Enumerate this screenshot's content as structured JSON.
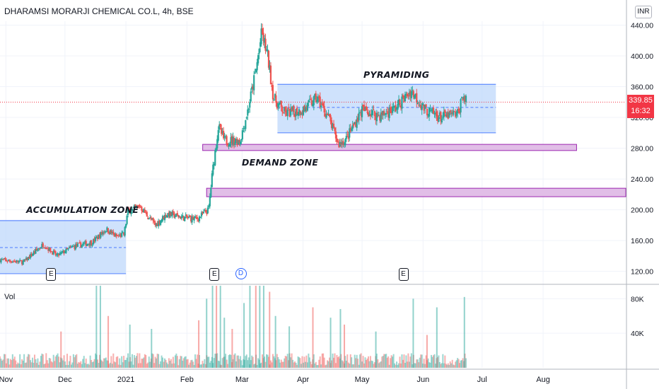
{
  "header": {
    "title": "DHARAMSI MORARJI CHEMICAL CO.L, 4h, BSE",
    "currency": "INR"
  },
  "annotations": {
    "accumulation": "ACCUMULATION ZONE",
    "demand": "DEMAND ZONE",
    "pyramiding": "PYRAMIDING"
  },
  "price_tag": {
    "price": "339.85",
    "countdown": "16:32"
  },
  "volume_label": "Vol",
  "events": [
    {
      "symbol": "E",
      "date": "2020-11-24"
    },
    {
      "symbol": "E",
      "date": "2021-02-15"
    },
    {
      "symbol": "D",
      "date": "2021-02-28"
    },
    {
      "symbol": "E",
      "date": "2021-05-22"
    }
  ],
  "colors": {
    "up": "#26a69a",
    "down": "#ef5350",
    "zone_fill": "#bbd6fb",
    "zone_border": "#2962ff",
    "demand_fill": "#e1bee7",
    "demand_border": "#9c27b0",
    "current": "#f23645"
  },
  "chart_data": [
    {
      "type": "candlestick",
      "title": "DHARAMSI MORARJI CHEMICAL CO.L, 4h, BSE",
      "ylim": [
        105,
        445
      ],
      "y_ticks": [
        "120.00",
        "160.00",
        "200.00",
        "240.00",
        "280.00",
        "320.00",
        "360.00",
        "400.00",
        "440.00"
      ],
      "x_ticks": [
        "Nov",
        "Dec",
        "2021",
        "Feb",
        "Mar",
        "Apr",
        "May",
        "Jun",
        "Jul",
        "Aug"
      ],
      "x_range": [
        "2020-10-29",
        "2021-09-12"
      ],
      "last_price": 339.85,
      "anchors": [
        [
          "2020-10-29",
          135
        ],
        [
          "2020-11-10",
          132
        ],
        [
          "2020-11-20",
          155
        ],
        [
          "2020-11-27",
          140
        ],
        [
          "2020-12-05",
          152
        ],
        [
          "2020-12-15",
          158
        ],
        [
          "2020-12-22",
          175
        ],
        [
          "2020-12-27",
          165
        ],
        [
          "2020-12-31",
          168
        ],
        [
          "2021-01-02",
          198
        ],
        [
          "2021-01-08",
          205
        ],
        [
          "2021-01-12",
          192
        ],
        [
          "2021-01-16",
          180
        ],
        [
          "2021-01-22",
          195
        ],
        [
          "2021-01-30",
          190
        ],
        [
          "2021-02-06",
          188
        ],
        [
          "2021-02-12",
          200
        ],
        [
          "2021-02-14",
          250
        ],
        [
          "2021-02-17",
          308
        ],
        [
          "2021-02-20",
          290
        ],
        [
          "2021-02-28",
          290
        ],
        [
          "2021-03-04",
          330
        ],
        [
          "2021-03-08",
          380
        ],
        [
          "2021-03-11",
          430
        ],
        [
          "2021-03-14",
          400
        ],
        [
          "2021-03-17",
          345
        ],
        [
          "2021-03-23",
          325
        ],
        [
          "2021-04-01",
          330
        ],
        [
          "2021-04-08",
          345
        ],
        [
          "2021-04-14",
          320
        ],
        [
          "2021-04-19",
          285
        ],
        [
          "2021-04-23",
          292
        ],
        [
          "2021-05-01",
          330
        ],
        [
          "2021-05-10",
          322
        ],
        [
          "2021-05-18",
          332
        ],
        [
          "2021-05-26",
          355
        ],
        [
          "2021-06-02",
          330
        ],
        [
          "2021-06-10",
          320
        ],
        [
          "2021-06-19",
          325
        ],
        [
          "2021-06-21",
          350
        ],
        [
          "2021-06-23",
          339.85
        ]
      ],
      "volume": {
        "ylim": [
          0,
          95000
        ],
        "y_ticks": [
          "40K",
          "80K"
        ],
        "spikes": [
          [
            "2020-11-29",
            42000
          ],
          [
            "2020-12-17",
            95000
          ],
          [
            "2020-12-19",
            95000
          ],
          [
            "2020-12-23",
            60000
          ],
          [
            "2021-01-03",
            50000
          ],
          [
            "2021-01-14",
            45000
          ],
          [
            "2021-02-07",
            55000
          ],
          [
            "2021-02-11",
            80000
          ],
          [
            "2021-02-14",
            95000
          ],
          [
            "2021-02-16",
            95000
          ],
          [
            "2021-02-18",
            95000
          ],
          [
            "2021-02-20",
            58000
          ],
          [
            "2021-02-24",
            45000
          ],
          [
            "2021-03-02",
            75000
          ],
          [
            "2021-03-05",
            95000
          ],
          [
            "2021-03-08",
            95000
          ],
          [
            "2021-03-10",
            95000
          ],
          [
            "2021-03-12",
            95000
          ],
          [
            "2021-03-15",
            88000
          ],
          [
            "2021-03-18",
            60000
          ],
          [
            "2021-03-25",
            48000
          ],
          [
            "2021-04-06",
            70000
          ],
          [
            "2021-04-15",
            58000
          ],
          [
            "2021-04-20",
            68000
          ],
          [
            "2021-04-22",
            50000
          ],
          [
            "2021-05-08",
            42000
          ],
          [
            "2021-05-27",
            80000
          ],
          [
            "2021-06-03",
            38000
          ],
          [
            "2021-06-08",
            70000
          ],
          [
            "2021-06-22",
            82000
          ]
        ]
      },
      "zones": [
        {
          "name": "ACCUMULATION ZONE",
          "type": "range",
          "from": "2020-10-29",
          "to": "2021-01-01",
          "low": 117,
          "high": 186,
          "mid": 151
        },
        {
          "name": "PYRAMIDING",
          "type": "range",
          "from": "2021-03-19",
          "to": "2021-07-08",
          "low": 300,
          "high": 363,
          "mid": 333
        },
        {
          "name": "DEMAND ZONE",
          "type": "band",
          "from": "2021-02-09",
          "to": "2021-08-18",
          "low": 277,
          "high": 285
        },
        {
          "name": "demand-lower",
          "type": "band",
          "from": "2021-02-11",
          "to": "2021-09-12",
          "low": 217,
          "high": 228
        }
      ]
    }
  ]
}
